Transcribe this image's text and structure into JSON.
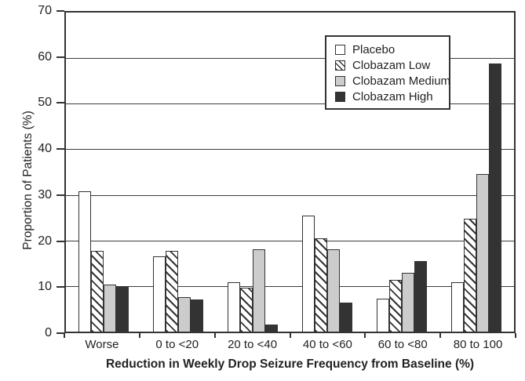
{
  "chart_data": {
    "type": "bar",
    "title": "",
    "xlabel": "Reduction in Weekly Drop Seizure Frequency from Baseline (%)",
    "ylabel": "Proportion of Patients (%)",
    "ylim": [
      0,
      70
    ],
    "yticks": [
      0,
      10,
      20,
      30,
      40,
      50,
      60,
      70
    ],
    "grid": "horizontal",
    "legend_position": "upper right",
    "categories": [
      "Worse",
      "0 to <20",
      "20 to <40",
      "40 to <60",
      "60 to <80",
      "80 to 100"
    ],
    "series": [
      {
        "name": "Placebo",
        "style": "white",
        "values": [
          30.8,
          16.5,
          10.8,
          25.4,
          7.2,
          10.9
        ]
      },
      {
        "name": "Clobazam Low",
        "style": "hatch",
        "values": [
          17.8,
          17.8,
          9.7,
          20.5,
          11.3,
          24.7
        ]
      },
      {
        "name": "Clobazam Medium",
        "style": "lightgray",
        "values": [
          10.4,
          7.6,
          18.0,
          18.0,
          12.9,
          34.6
        ]
      },
      {
        "name": "Clobazam High",
        "style": "black",
        "values": [
          10.0,
          7.0,
          1.6,
          6.4,
          15.4,
          58.8
        ]
      }
    ],
    "colors": {
      "bar_outline": "#333333",
      "dark_fill": "#333333",
      "light_gray_fill": "#cccccc",
      "background": "#ffffff"
    }
  }
}
